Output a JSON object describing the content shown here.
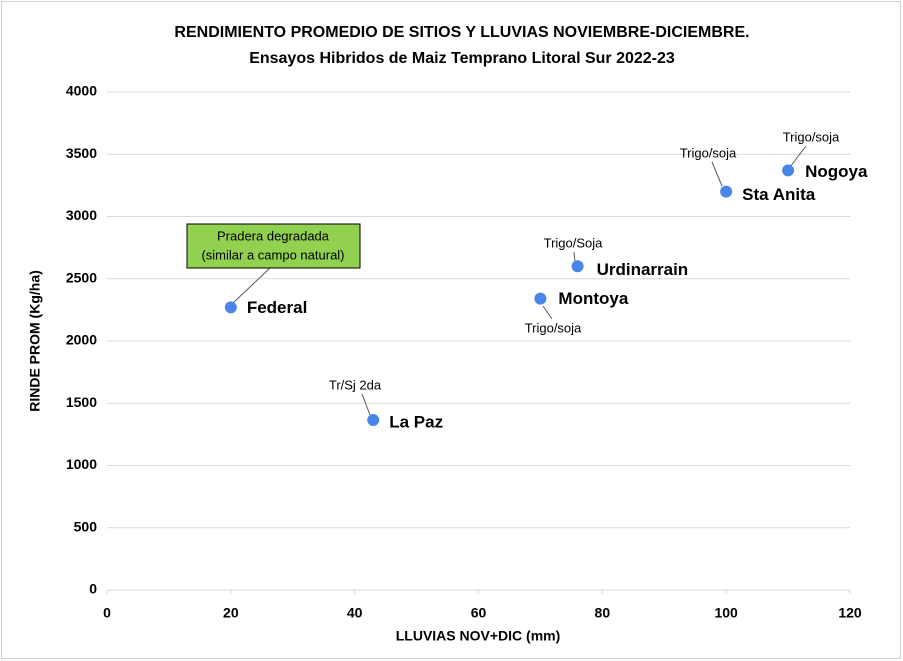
{
  "chart_data": {
    "type": "scatter",
    "title": "RENDIMIENTO  PROMEDIO  DE SITIOS Y LLUVIAS NOVIEMBRE-DICIEMBRE.",
    "subtitle": "Ensayos Hibridos de Maiz Temprano Litoral Sur 2022-23",
    "xlabel": "LLUVIAS NOV+DIC (mm)",
    "ylabel": "RINDE PROM (Kg/ha)",
    "labels": [
      "Federal",
      "La Paz",
      "Montoya",
      "Urdinarrain",
      "Sta Anita",
      "Nogoya"
    ],
    "x": [
      20,
      43,
      70,
      76,
      100,
      110
    ],
    "values": [
      2270,
      1365,
      2340,
      2600,
      3200,
      3370
    ],
    "notes": [
      null,
      "Tr/Sj 2da",
      "Trigo/soja",
      "Trigo/Soja",
      "Trigo/soja",
      "Trigo/soja"
    ],
    "annotation": {
      "lines": [
        "Pradera degradada",
        "(similar a campo natural)"
      ],
      "color": "#92d050"
    },
    "color": "#4a86e8",
    "xlim": [
      0,
      120
    ],
    "xticks": [
      0,
      20,
      40,
      60,
      80,
      100,
      120
    ],
    "ylim": [
      0,
      4000
    ],
    "yticks": [
      0,
      500,
      1000,
      1500,
      2000,
      2500,
      3000,
      3500,
      4000
    ],
    "grid": true
  }
}
